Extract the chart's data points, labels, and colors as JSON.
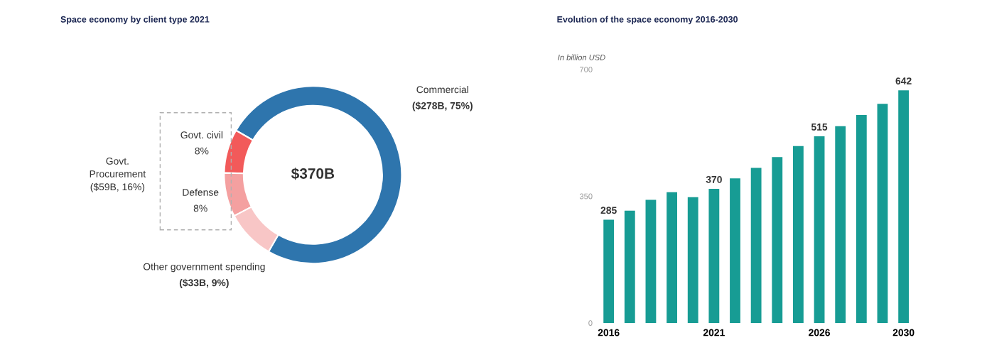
{
  "chart_data": [
    {
      "type": "donut",
      "title": "Space economy by client type 2021",
      "categories": [
        "Commercial",
        "Govt. civil",
        "Defense",
        "Other government spending"
      ],
      "values": [
        75,
        8,
        8,
        9
      ],
      "colors": [
        "#2e75ad",
        "#f25a5a",
        "#f4a0a0",
        "#f8c6c6"
      ],
      "value_labels": [
        "($278B, 75%)",
        "8%",
        "8%",
        "($33B, 9%)"
      ],
      "annotations": [
        "$370B",
        "Govt.\nProcurement\n($59B, 16%)"
      ]
    },
    {
      "type": "bar",
      "title": "Evolution of the space economy 2016-2030",
      "ylabel": "In billion USD",
      "categories": [
        "2016",
        null,
        null,
        null,
        null,
        "2021",
        null,
        null,
        null,
        null,
        "2026",
        null,
        null,
        null,
        "2030"
      ],
      "values": [
        285,
        310,
        340,
        361,
        347,
        370,
        399,
        428,
        458,
        488,
        515,
        543,
        574,
        605,
        642
      ],
      "color": "#179c94",
      "value_labels": [
        "285",
        null,
        null,
        null,
        null,
        "370",
        null,
        null,
        null,
        null,
        "515",
        null,
        null,
        null,
        "642"
      ],
      "ylim": [
        0,
        700
      ],
      "yticks": [
        0,
        350,
        700
      ],
      "grid": false
    }
  ]
}
